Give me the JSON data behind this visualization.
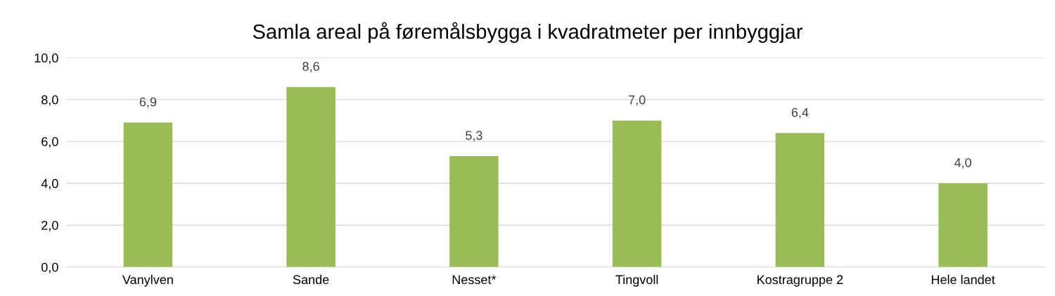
{
  "chart_data": {
    "type": "bar",
    "title": "Samla areal på føremålsbygga i kvadratmeter per innbyggjar",
    "categories": [
      "Vanylven",
      "Sande",
      "Nesset*",
      "Tingvoll",
      "Kostragruppe 2",
      "Hele landet"
    ],
    "values": [
      6.9,
      8.6,
      5.3,
      7.0,
      6.4,
      4.0
    ],
    "value_labels": [
      "6,9",
      "8,6",
      "5,3",
      "7,0",
      "6,4",
      "4,0"
    ],
    "color": "#9bbb59",
    "ylim": [
      0,
      10
    ],
    "yticks": [
      {
        "value": 0,
        "label": "0,0"
      },
      {
        "value": 2,
        "label": "2,0"
      },
      {
        "value": 4,
        "label": "4,0"
      },
      {
        "value": 6,
        "label": "6,0"
      },
      {
        "value": 8,
        "label": "8,0"
      },
      {
        "value": 10,
        "label": "10,0"
      }
    ],
    "grid": "y"
  }
}
